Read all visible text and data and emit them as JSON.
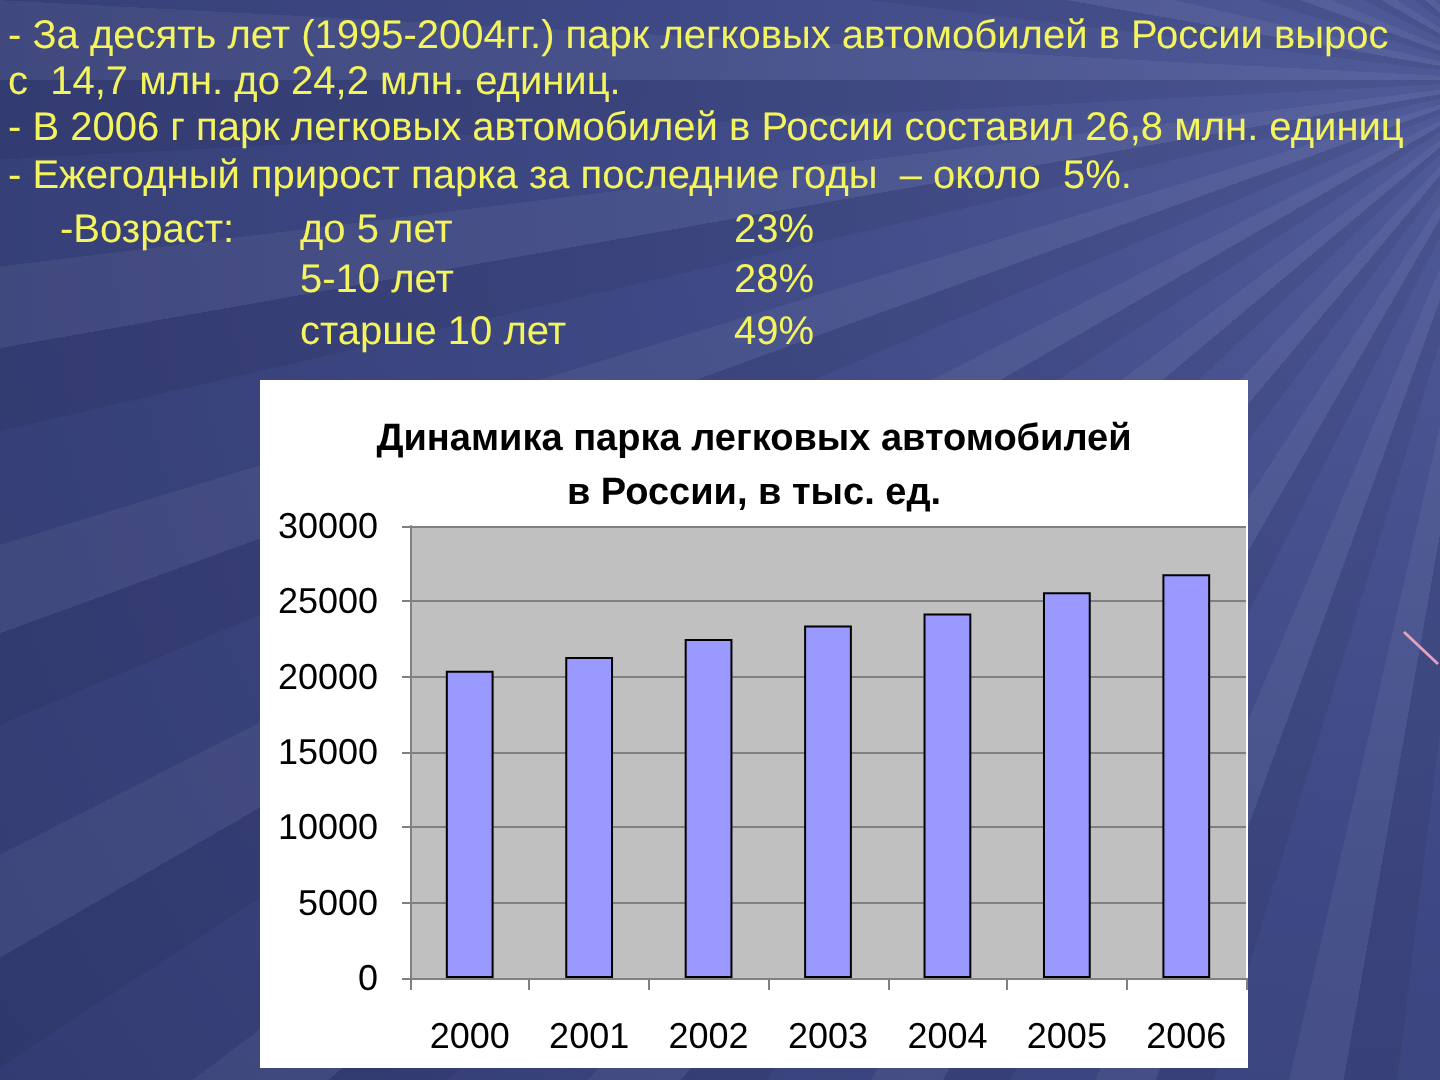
{
  "chart_data": {
    "type": "bar",
    "title": "Динамика парка легковых автомобилей в России, в тыс. ед.",
    "categories": [
      "2000",
      "2001",
      "2002",
      "2003",
      "2004",
      "2005",
      "2006"
    ],
    "values": [
      20400,
      21300,
      22500,
      23400,
      24200,
      25600,
      26800
    ],
    "color": "#9999ff",
    "ylim": [
      0,
      30000
    ],
    "yticks": [
      0,
      5000,
      10000,
      15000,
      20000,
      25000,
      30000
    ],
    "grid": "y",
    "annotations": [
      "- За десять лет (1995-2004гг.) парк легковых автомобилей в России вырос",
      "с  14,7 млн. до 24,2 млн. единиц.",
      "- В 2006 г парк легковых автомобилей в России составил 26,8 млн. единиц",
      "- Ежегодный прирост парка за последние годы  – около  5%.",
      "-Возраст:",
      "до 5 лет",
      "23%",
      "5-10 лет",
      "28%",
      "старше 10 лет",
      "49%"
    ]
  }
}
